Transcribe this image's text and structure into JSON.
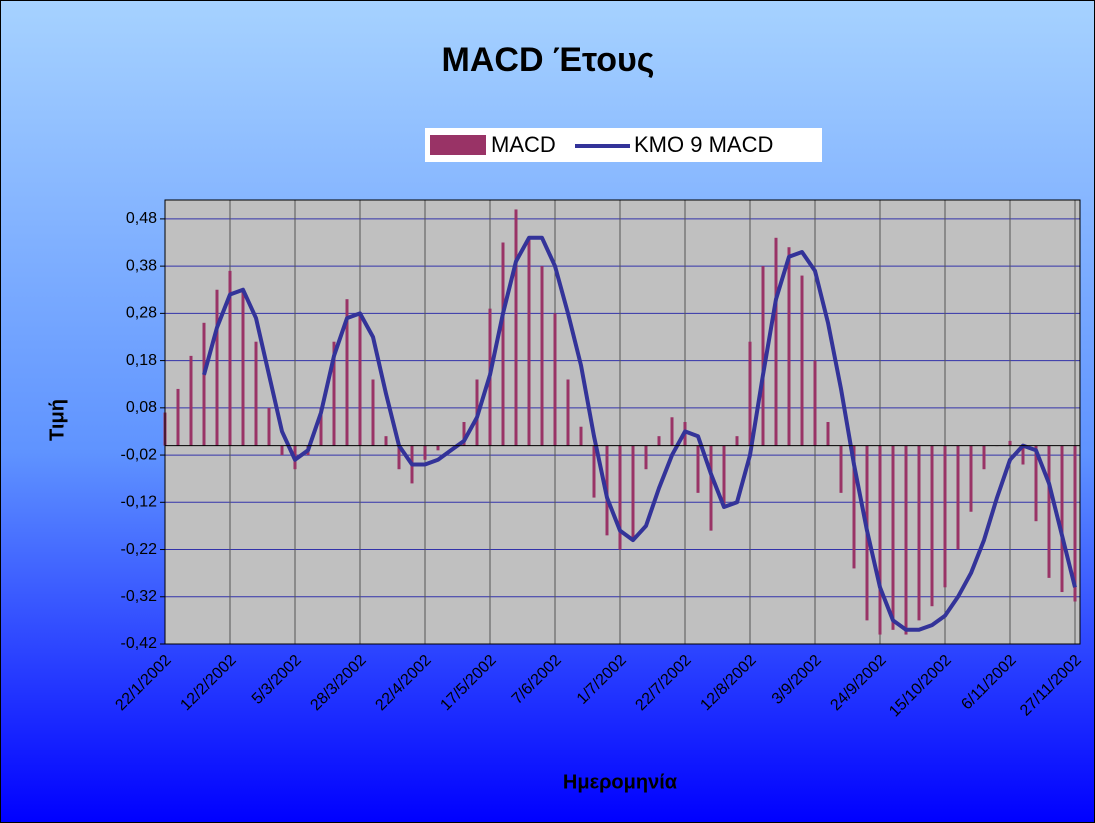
{
  "chart_data": {
    "type": "bar_line",
    "title": "MACD Έτους",
    "x_label": "Ημερομηνία",
    "y_label": "Τιμή",
    "legend": "top",
    "grid": true,
    "categories": [
      "22/1/2002",
      null,
      null,
      null,
      null,
      "12/2/2002",
      null,
      null,
      null,
      null,
      "5/3/2002",
      null,
      null,
      null,
      null,
      "28/3/2002",
      null,
      null,
      null,
      null,
      "22/4/2002",
      null,
      null,
      null,
      null,
      "17/5/2002",
      null,
      null,
      null,
      null,
      "7/6/2002",
      null,
      null,
      null,
      null,
      "1/7/2002",
      null,
      null,
      null,
      null,
      "22/7/2002",
      null,
      null,
      null,
      null,
      "12/8/2002",
      null,
      null,
      null,
      null,
      "3/9/2002",
      null,
      null,
      null,
      null,
      "24/9/2002",
      null,
      null,
      null,
      null,
      "15/10/2002",
      null,
      null,
      null,
      null,
      "6/11/2002",
      null,
      null,
      null,
      null,
      "27/11/2002"
    ],
    "series": [
      {
        "name": "MACD",
        "kind": "bar",
        "color": "#993366",
        "values": [
          0.07,
          0.12,
          0.19,
          0.26,
          0.33,
          0.37,
          0.33,
          0.22,
          0.08,
          -0.02,
          -0.05,
          -0.02,
          0.08,
          0.22,
          0.31,
          0.28,
          0.14,
          0.02,
          -0.05,
          -0.08,
          -0.03,
          -0.01,
          0.0,
          0.05,
          0.14,
          0.29,
          0.43,
          0.5,
          0.44,
          0.38,
          0.28,
          0.14,
          0.04,
          -0.11,
          -0.19,
          -0.22,
          -0.2,
          -0.05,
          0.02,
          0.06,
          0.05,
          -0.1,
          -0.18,
          -0.13,
          0.02,
          0.22,
          0.38,
          0.44,
          0.42,
          0.36,
          0.18,
          0.05,
          -0.1,
          -0.26,
          -0.37,
          -0.4,
          -0.39,
          -0.4,
          -0.37,
          -0.34,
          -0.3,
          -0.22,
          -0.14,
          -0.05,
          0.0,
          0.01,
          -0.04,
          -0.16,
          -0.28,
          -0.31,
          -0.33
        ]
      },
      {
        "name": "ΚΜΟ 9 MACD",
        "kind": "line",
        "color": "#333399",
        "values": [
          null,
          null,
          null,
          0.15,
          0.25,
          0.32,
          0.33,
          0.27,
          0.15,
          0.03,
          -0.03,
          -0.01,
          0.07,
          0.19,
          0.27,
          0.28,
          0.23,
          0.11,
          0.0,
          -0.04,
          -0.04,
          -0.03,
          -0.01,
          0.01,
          0.06,
          0.15,
          0.28,
          0.39,
          0.44,
          0.44,
          0.38,
          0.28,
          0.17,
          0.02,
          -0.11,
          -0.18,
          -0.2,
          -0.17,
          -0.09,
          -0.02,
          0.03,
          0.02,
          -0.06,
          -0.13,
          -0.12,
          -0.02,
          0.15,
          0.31,
          0.4,
          0.41,
          0.37,
          0.26,
          0.12,
          -0.04,
          -0.18,
          -0.3,
          -0.37,
          -0.39,
          -0.39,
          -0.38,
          -0.36,
          -0.32,
          -0.27,
          -0.2,
          -0.11,
          -0.03,
          0.0,
          -0.01,
          -0.08,
          -0.19,
          -0.3
        ]
      }
    ],
    "ylim": [
      -0.42,
      0.52
    ],
    "yticks": [
      {
        "value": -0.42,
        "label": "-0,42"
      },
      {
        "value": -0.32,
        "label": "-0,32"
      },
      {
        "value": -0.22,
        "label": "-0,22"
      },
      {
        "value": -0.12,
        "label": "-0,12"
      },
      {
        "value": -0.02,
        "label": "-0,02"
      },
      {
        "value": 0.08,
        "label": "0,08"
      },
      {
        "value": 0.18,
        "label": "0,18"
      },
      {
        "value": 0.28,
        "label": "0,28"
      },
      {
        "value": 0.38,
        "label": "0,38"
      },
      {
        "value": 0.48,
        "label": "0,48"
      }
    ]
  }
}
